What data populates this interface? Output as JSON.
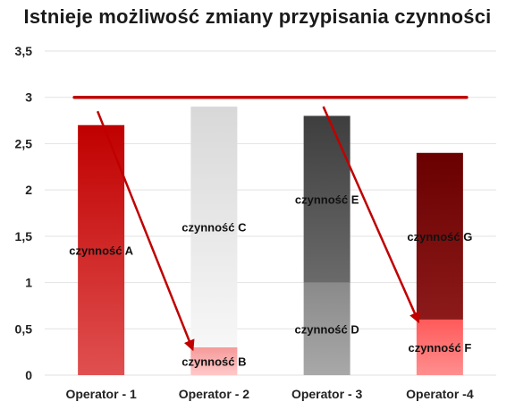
{
  "chart_data": {
    "type": "bar",
    "stacked": true,
    "title": "Istnieje możliwość zmiany przypisania czynności",
    "categories": [
      "Operator - 1",
      "Operator - 2",
      "Operator - 3",
      "Operator -4"
    ],
    "ylim": [
      0,
      3.5
    ],
    "yticks": [
      "0",
      "0,5",
      "1",
      "1,5",
      "2",
      "2,5",
      "3",
      "3,5"
    ],
    "ytick_values": [
      0,
      0.5,
      1,
      1.5,
      2,
      2.5,
      3,
      3.5
    ],
    "grid": true,
    "target_line": {
      "value": 3,
      "color": "#c00000"
    },
    "bars": [
      {
        "category": "Operator - 1",
        "segments": [
          {
            "label": "czynność A",
            "value": 2.7,
            "colors": [
              "#c00000",
              "#e05050"
            ]
          }
        ]
      },
      {
        "category": "Operator - 2",
        "segments": [
          {
            "label": "czynność B",
            "value": 0.3,
            "colors": [
              "#f59a9a",
              "#ffc8c8"
            ]
          },
          {
            "label": "czynność C",
            "value": 2.6,
            "colors": [
              "#d8d8d8",
              "#f7f7f7"
            ]
          }
        ]
      },
      {
        "category": "Operator - 3",
        "segments": [
          {
            "label": "czynność D",
            "value": 1.0,
            "colors": [
              "#8a8a8a",
              "#a8a8a8"
            ]
          },
          {
            "label": "czynność E",
            "value": 1.8,
            "colors": [
              "#3e3e3e",
              "#6a6a6a"
            ]
          }
        ]
      },
      {
        "category": "Operator -4",
        "segments": [
          {
            "label": "czynność F",
            "value": 0.6,
            "colors": [
              "#ff5a5a",
              "#ff8e8e"
            ]
          },
          {
            "label": "czynność G",
            "value": 1.8,
            "colors": [
              "#6a0000",
              "#8c1a1a"
            ]
          }
        ]
      }
    ],
    "arrows": [
      {
        "from": {
          "category": "Operator - 1",
          "value": 2.85
        },
        "to": {
          "category": "Operator - 2",
          "value": 0.3
        }
      },
      {
        "from": {
          "category": "Operator - 3",
          "value": 2.9
        },
        "to": {
          "category": "Operator -4",
          "value": 0.6
        }
      }
    ],
    "arrow_color": "#c00000"
  }
}
